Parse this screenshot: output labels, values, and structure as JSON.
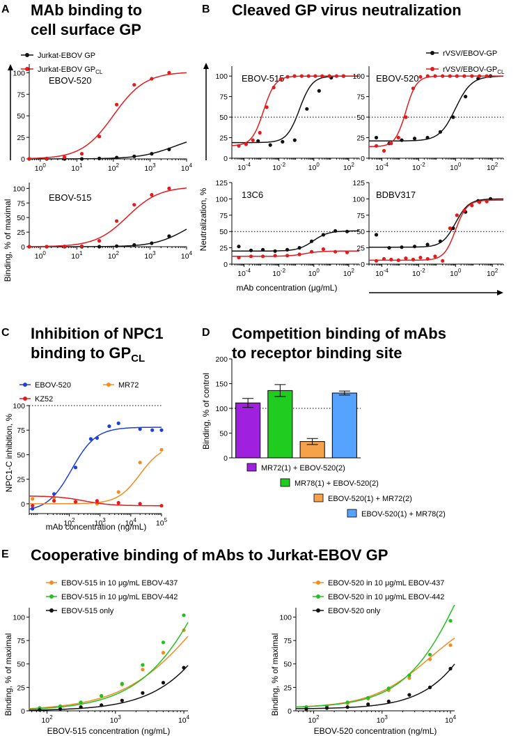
{
  "colors": {
    "black": "#111111",
    "red": "#e41a1c",
    "blue": "#1f3fd6",
    "orange": "#f58a1f",
    "green": "#22c020",
    "purple": "#a020e0",
    "bargreen": "#1fcc1f",
    "barorange": "#f5a24a",
    "barblue": "#55a2ff"
  },
  "panels": {
    "A": {
      "letter": "A",
      "title_line1": "MAb binding to",
      "title_line2": "cell surface GP",
      "legend_black": "Jurkat-EBOV GP",
      "legend_red": "Jurkat-EBOV GP",
      "legend_red_sub": "CL",
      "ylabel": "Binding, % of maximal"
    },
    "B": {
      "letter": "B",
      "title": "Cleaved GP virus neutralization",
      "legend_black": "rVSV/EBOV-GP",
      "legend_red": "rVSV/EBOV-GP",
      "legend_red_sub": "CL",
      "ylabel": "Neutralization, %",
      "xlabel": "mAb concentration (μg/mL)"
    },
    "C": {
      "letter": "C",
      "title_line1": "Inhibition of NPC1",
      "title_line2": "binding to GP",
      "title_sub": "CL",
      "ylabel": "NPC1-C inhibition, %",
      "xlabel": "mAb concentration (ng/mL)"
    },
    "D": {
      "letter": "D",
      "title_line1": "Competition binding of mAbs",
      "title_line2": "to receptor binding site",
      "ylabel": "Binding, % of control"
    },
    "E": {
      "letter": "E",
      "title": "Cooperative binding of mAbs to Jurkat-EBOV GP",
      "ylabel": "Binding, % of maximal"
    }
  },
  "chart_data": [
    {
      "id": "A1",
      "type": "scatter",
      "title": "EBOV-520",
      "xscale": "log",
      "xlim": [
        0.5,
        10000
      ],
      "ylim": [
        0,
        110
      ],
      "xticks": [
        "10^0",
        "10^1",
        "10^2",
        "10^3",
        "10^4"
      ],
      "yticks": [
        0,
        25,
        50,
        75,
        100
      ],
      "series": [
        {
          "name": "Jurkat-EBOV GP",
          "color": "black",
          "x": [
            0.5,
            1.5,
            4.6,
            13.7,
            41,
            123,
            370,
            1111,
            3333
          ],
          "y": [
            0,
            0,
            0,
            0,
            0.5,
            1.5,
            3,
            6,
            11
          ],
          "fit": {
            "bottom": 0,
            "top": 30,
            "ec50": 5000,
            "hill": 0.9
          }
        },
        {
          "name": "Jurkat-EBOV GPCL",
          "color": "red",
          "x": [
            0.5,
            1.5,
            4.6,
            13.7,
            41,
            123,
            370,
            1111,
            3333
          ],
          "y": [
            0,
            0.5,
            2,
            6,
            26,
            63,
            86,
            93,
            100
          ],
          "fit": {
            "bottom": 0,
            "top": 101,
            "ec50": 100,
            "hill": 1.0
          }
        }
      ]
    },
    {
      "id": "A2",
      "type": "scatter",
      "title": "EBOV-515",
      "xscale": "log",
      "xlim": [
        0.5,
        10000
      ],
      "ylim": [
        0,
        110
      ],
      "xticks": [
        "10^0",
        "10^1",
        "10^2",
        "10^3",
        "10^4"
      ],
      "yticks": [
        0,
        25,
        50,
        75,
        100
      ],
      "series": [
        {
          "name": "Jurkat-EBOV GP",
          "color": "black",
          "x": [
            0.5,
            1.5,
            4.6,
            13.7,
            41,
            123,
            370,
            1111,
            3333
          ],
          "y": [
            0,
            0,
            0,
            0,
            0,
            1,
            3,
            6,
            18
          ],
          "fit": {
            "bottom": 0,
            "top": 60,
            "ec50": 10000,
            "hill": 1.0
          }
        },
        {
          "name": "Jurkat-EBOV GPCL",
          "color": "red",
          "x": [
            0.5,
            1.5,
            4.6,
            13.7,
            41,
            123,
            370,
            1111,
            3333
          ],
          "y": [
            0,
            0,
            0.5,
            1,
            10,
            44,
            72,
            89,
            100
          ],
          "fit": {
            "bottom": 0,
            "top": 103,
            "ec50": 240,
            "hill": 1.0
          }
        }
      ]
    },
    {
      "id": "B1",
      "type": "scatter",
      "title": "EBOV-515",
      "xscale": "log",
      "xlim": [
        2e-05,
        400
      ],
      "ylim": [
        0,
        112
      ],
      "hline": 50,
      "xticks": [
        "10^-4",
        "10^-2",
        "10^0",
        "10^2"
      ],
      "yticks": [
        0,
        25,
        50,
        75,
        100
      ],
      "series": [
        {
          "name": "rVSV/EBOV-GP",
          "color": "black",
          "x": [
            0.00064,
            0.0032,
            0.016,
            0.08,
            0.4,
            2,
            10,
            50
          ],
          "y": [
            21,
            16,
            20,
            22,
            60,
            82,
            98,
            100
          ],
          "fit": {
            "bottom": 19,
            "top": 100,
            "ec50": 0.15,
            "hill": 1.2
          }
        },
        {
          "name": "rVSV/EBOV-GPCL",
          "color": "red",
          "x": [
            5e-05,
            0.00013,
            0.00032,
            0.0008,
            0.002,
            0.005,
            0.0125,
            0.031,
            0.078,
            0.2,
            0.5,
            1.2,
            3,
            7.8,
            20,
            50
          ],
          "y": [
            15,
            17,
            22,
            31,
            62,
            86,
            96,
            99,
            100,
            100,
            100,
            100,
            100,
            100,
            100,
            100
          ],
          "fit": {
            "bottom": 15,
            "top": 100,
            "ec50": 0.0013,
            "hill": 1.3
          }
        }
      ]
    },
    {
      "id": "B2",
      "type": "scatter",
      "title": "EBOV-520",
      "xscale": "log",
      "xlim": [
        2e-05,
        400
      ],
      "ylim": [
        0,
        112
      ],
      "hline": 50,
      "xticks": [
        "10^-4",
        "10^-2",
        "10^0",
        "10^2"
      ],
      "yticks": [
        0,
        25,
        50,
        75,
        100
      ],
      "series": [
        {
          "name": "rVSV/EBOV-GP",
          "color": "black",
          "x": [
            5e-05,
            0.00025,
            0.0012,
            0.006,
            0.03,
            0.15,
            0.75,
            3.5,
            17,
            80
          ],
          "y": [
            25,
            18,
            22,
            24,
            25,
            32,
            50,
            75,
            97,
            100
          ],
          "fit": {
            "bottom": 21,
            "top": 100,
            "ec50": 1.0,
            "hill": 1.0
          }
        },
        {
          "name": "rVSV/EBOV-GPCL",
          "color": "red",
          "x": [
            5e-05,
            0.00013,
            0.00032,
            0.0008,
            0.002,
            0.005,
            0.0125,
            0.031,
            0.078,
            0.2,
            0.5,
            1.2,
            3,
            7.8,
            20,
            50
          ],
          "y": [
            15,
            9,
            18,
            25,
            50,
            85,
            99,
            100,
            100,
            100,
            100,
            100,
            100,
            100,
            100,
            100
          ],
          "fit": {
            "bottom": 14,
            "top": 100,
            "ec50": 0.002,
            "hill": 1.5
          }
        }
      ]
    },
    {
      "id": "B3",
      "type": "scatter",
      "title": "13C6",
      "xscale": "log",
      "xlim": [
        2e-05,
        400
      ],
      "ylim": [
        0,
        125
      ],
      "hline": 50,
      "xticks": [
        "10^-4",
        "10^-2",
        "10^0",
        "10^2"
      ],
      "yticks": [
        0,
        25,
        50,
        75,
        100,
        125
      ],
      "series": [
        {
          "name": "rVSV/EBOV-GP",
          "color": "black",
          "x": [
            5e-05,
            0.00025,
            0.0012,
            0.006,
            0.03,
            0.15,
            0.75,
            3.5,
            17,
            80
          ],
          "y": [
            27,
            21,
            22,
            20,
            22,
            25,
            35,
            45,
            51,
            50
          ],
          "fit": {
            "bottom": 20,
            "top": 51,
            "ec50": 0.9,
            "hill": 1.0
          }
        },
        {
          "name": "rVSV/EBOV-GPCL",
          "color": "red",
          "x": [
            5e-05,
            0.00025,
            0.0012,
            0.006,
            0.03,
            0.15,
            0.75,
            3.5,
            17,
            80
          ],
          "y": [
            10,
            12,
            12,
            13,
            13,
            15,
            19,
            23,
            19,
            18
          ],
          "fit": {
            "bottom": 12,
            "top": 20,
            "ec50": 0.3,
            "hill": 1.0
          }
        }
      ]
    },
    {
      "id": "B4",
      "type": "scatter",
      "title": "BDBV317",
      "xscale": "log",
      "xlim": [
        2e-05,
        400
      ],
      "ylim": [
        0,
        125
      ],
      "hline": 50,
      "xticks": [
        "10^-4",
        "10^-2",
        "10^0",
        "10^2"
      ],
      "yticks": [
        0,
        25,
        50,
        75,
        100,
        125
      ],
      "series": [
        {
          "name": "rVSV/EBOV-GP",
          "color": "black",
          "x": [
            5e-05,
            0.00025,
            0.0012,
            0.006,
            0.03,
            0.15,
            0.75,
            3.5,
            17,
            80
          ],
          "y": [
            45,
            25,
            26,
            27,
            30,
            35,
            55,
            80,
            97,
            100
          ],
          "fit": {
            "bottom": 26,
            "top": 100,
            "ec50": 1.0,
            "hill": 1.2
          }
        },
        {
          "name": "rVSV/EBOV-GPCL",
          "color": "red",
          "x": [
            5e-05,
            0.00013,
            0.00032,
            0.0008,
            0.002,
            0.005,
            0.0125,
            0.031,
            0.078,
            0.2,
            0.5,
            1.2,
            3,
            7.8,
            20,
            50
          ],
          "y": [
            5,
            8,
            7,
            6,
            9,
            7,
            10,
            8,
            12,
            5,
            55,
            75,
            82,
            90,
            95,
            96
          ],
          "fit": {
            "bottom": 6,
            "top": 98,
            "ec50": 1.0,
            "hill": 1.4
          }
        }
      ]
    },
    {
      "id": "C",
      "type": "scatter",
      "xscale": "log",
      "xlim": [
        5,
        100000
      ],
      "ylim": [
        -10,
        100
      ],
      "hline": 100,
      "xticks": [
        "10^2",
        "10^3",
        "10^4",
        "10^5"
      ],
      "yticks": [
        0,
        25,
        50,
        75,
        100
      ],
      "legend": [
        "EBOV-520",
        "MR72",
        "KZ52"
      ],
      "series": [
        {
          "name": "EBOV-520",
          "color": "blue",
          "x": [
            6.4,
            32,
            160,
            800,
            4000,
            20000,
            100000,
            500,
            2000,
            50000
          ],
          "y": [
            -5,
            10,
            37,
            67,
            82,
            76,
            75,
            66,
            79,
            75
          ],
          "fit": {
            "bottom": -8,
            "top": 78,
            "ec50": 120,
            "hill": 1.1
          }
        },
        {
          "name": "MR72",
          "color": "orange",
          "x": [
            6.4,
            32,
            160,
            800,
            4000,
            20000,
            100000
          ],
          "y": [
            5,
            6,
            2,
            0,
            12,
            42,
            55
          ],
          "fit": {
            "bottom": 0,
            "top": 60,
            "ec50": 20000,
            "hill": 1.2
          }
        },
        {
          "name": "KZ52",
          "color": "red",
          "x": [
            6.4,
            32,
            160,
            800,
            4000,
            20000,
            100000
          ],
          "y": [
            -2,
            3,
            2,
            3,
            1,
            0,
            -2
          ],
          "fit": {
            "bottom": -2,
            "top": 8,
            "ec50": 300,
            "hill": -1
          }
        }
      ]
    },
    {
      "id": "D",
      "type": "bar",
      "ylim": [
        0,
        200
      ],
      "hline": 100,
      "yticks": [
        0,
        50,
        100,
        150,
        200
      ],
      "categories": [
        "MR72(1) + EBOV-520(2)",
        "MR78(1) + EBOV-520(2)",
        "EBOV-520(1) + MR72(2)",
        "EBOV-520(1) + MR78(2)"
      ],
      "values": [
        111,
        136,
        33,
        131
      ],
      "errors": [
        9,
        12,
        6,
        4
      ],
      "bar_colors": [
        "purple",
        "bargreen",
        "barorange",
        "barblue"
      ]
    },
    {
      "id": "E1",
      "type": "scatter",
      "xscale": "log",
      "xlim": [
        55,
        11500
      ],
      "ylim": [
        0,
        110
      ],
      "xticks": [
        "10^2",
        "10^3",
        "10^4"
      ],
      "yticks": [
        0,
        25,
        50,
        75,
        100
      ],
      "xlabel": "EBOV-515 concentration (ng/mL)",
      "series": [
        {
          "name": "EBOV-515 in 10 μg/mL EBOV-437",
          "color": "orange",
          "x": [
            78,
            156,
            312,
            625,
            1250,
            2500,
            5000,
            10000
          ],
          "y": [
            3,
            5,
            9,
            16,
            28,
            44,
            62,
            86
          ],
          "fit": {
            "bottom": 0,
            "top": 200,
            "ec50": 20000,
            "hill": 0.75
          }
        },
        {
          "name": "EBOV-515 in 10 μg/mL EBOV-442",
          "color": "green",
          "x": [
            78,
            156,
            312,
            625,
            1250,
            2500,
            5000,
            10000
          ],
          "y": [
            3,
            5,
            9,
            16,
            29,
            49,
            73,
            102
          ],
          "fit": {
            "bottom": 0,
            "top": 350,
            "ec50": 40000,
            "hill": 0.8
          }
        },
        {
          "name": "EBOV-515 only",
          "color": "black",
          "x": [
            78,
            156,
            312,
            625,
            1250,
            2500,
            5000,
            10000
          ],
          "y": [
            1,
            2,
            4,
            6,
            11,
            19,
            30,
            46
          ],
          "fit": {
            "bottom": 0,
            "top": 300,
            "ec50": 80000,
            "hill": 0.85
          }
        }
      ]
    },
    {
      "id": "E2",
      "type": "scatter",
      "xscale": "log",
      "xlim": [
        55,
        11500
      ],
      "ylim": [
        0,
        110
      ],
      "xticks": [
        "10^2",
        "10^3",
        "10^4"
      ],
      "yticks": [
        0,
        25,
        50,
        75,
        100
      ],
      "xlabel": "EBOV-520 concentration (ng/mL)",
      "series": [
        {
          "name": "EBOV-520 in 10 μg/mL EBOV-437",
          "color": "orange",
          "x": [
            78,
            156,
            312,
            625,
            1250,
            2500,
            5000,
            10000
          ],
          "y": [
            4,
            5,
            8,
            13,
            22,
            35,
            55,
            70
          ],
          "fit": {
            "bottom": 3,
            "top": 110,
            "ec50": 5000,
            "hill": 1.0
          }
        },
        {
          "name": "EBOV-520 in 10 μg/mL EBOV-442",
          "color": "green",
          "x": [
            78,
            156,
            312,
            625,
            1250,
            2500,
            5000,
            10000
          ],
          "y": [
            4,
            5,
            9,
            14,
            24,
            38,
            60,
            96
          ],
          "fit": {
            "bottom": 3,
            "top": 300,
            "ec50": 20000,
            "hill": 0.95
          }
        },
        {
          "name": "EBOV-520 only",
          "color": "black",
          "x": [
            78,
            156,
            312,
            625,
            1250,
            2500,
            5000,
            10000
          ],
          "y": [
            2,
            3,
            4,
            7,
            10,
            17,
            25,
            45
          ],
          "fit": {
            "bottom": 2,
            "top": 300,
            "ec50": 60000,
            "hill": 1.0
          }
        }
      ]
    }
  ]
}
